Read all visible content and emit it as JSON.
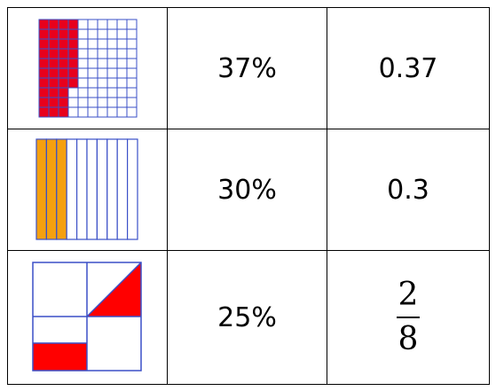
{
  "rows": [
    {
      "model": "hundred-grid",
      "shaded": 37,
      "total": 100,
      "percent": "37%",
      "decimal": "0.37"
    },
    {
      "model": "ten-strips",
      "shaded": 3,
      "total": 10,
      "percent": "30%",
      "decimal": "0.3"
    },
    {
      "model": "square-quarters",
      "percent": "25%",
      "fraction": {
        "numerator": "2",
        "denominator": "8"
      }
    }
  ],
  "colors": {
    "grid_line": "#3a4fc7",
    "hundred_fill": "#e8001c",
    "strip_fill": "#f5a00f",
    "square_fill": "#ff0000",
    "cell_border": "#000000"
  }
}
